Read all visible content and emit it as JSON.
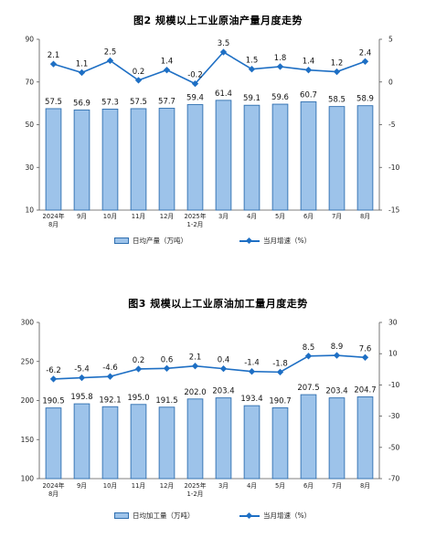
{
  "charts": [
    {
      "id": "chart1",
      "title": "图2  规模以上工业原油产量月度走势",
      "legend": {
        "bar_label": "日均产量（万吨）",
        "line_label": "当月增速（%）"
      },
      "colors": {
        "bar_fill": "#9dc3ea",
        "bar_stroke": "#2f6fb0",
        "line": "#1e6fc4"
      },
      "chart_data": {
        "type": "bar",
        "categories": [
          [
            "2024年",
            "8月"
          ],
          [
            "9月"
          ],
          [
            "10月"
          ],
          [
            "11月"
          ],
          [
            "12月"
          ],
          [
            "2025年",
            "1-2月"
          ],
          [
            "3月"
          ],
          [
            "4月"
          ],
          [
            "5月"
          ],
          [
            "6月"
          ],
          [
            "7月"
          ],
          [
            "8月"
          ]
        ],
        "series": [
          {
            "name": "日均产量（万吨）",
            "type": "bar",
            "axis": "left",
            "values": [
              57.5,
              56.9,
              57.3,
              57.5,
              57.7,
              59.4,
              61.4,
              59.1,
              59.6,
              60.7,
              58.5,
              58.9
            ]
          },
          {
            "name": "当月增速（%）",
            "type": "line",
            "axis": "right",
            "values": [
              2.1,
              1.1,
              2.5,
              0.2,
              1.4,
              -0.2,
              3.5,
              1.5,
              1.8,
              1.4,
              1.2,
              2.4
            ]
          }
        ],
        "ylim_left": [
          10,
          90
        ],
        "yticks_left": [
          10,
          30,
          50,
          70,
          90
        ],
        "ylim_right": [
          -15,
          5
        ],
        "yticks_right": [
          -15,
          -10,
          -5,
          0,
          5
        ],
        "grid": false,
        "legend_position": "bottom"
      }
    },
    {
      "id": "chart2",
      "title": "图3  规模以上工业原油加工量月度走势",
      "legend": {
        "bar_label": "日均加工量（万吨）",
        "line_label": "当月增速（%）"
      },
      "colors": {
        "bar_fill": "#9dc3ea",
        "bar_stroke": "#2f6fb0",
        "line": "#1e6fc4"
      },
      "chart_data": {
        "type": "bar",
        "categories": [
          [
            "2024年",
            "8月"
          ],
          [
            "9月"
          ],
          [
            "10月"
          ],
          [
            "11月"
          ],
          [
            "12月"
          ],
          [
            "2025年",
            "1-2月"
          ],
          [
            "3月"
          ],
          [
            "4月"
          ],
          [
            "5月"
          ],
          [
            "6月"
          ],
          [
            "7月"
          ],
          [
            "8月"
          ]
        ],
        "series": [
          {
            "name": "日均加工量（万吨）",
            "type": "bar",
            "axis": "left",
            "values": [
              190.5,
              195.8,
              192.1,
              195.0,
              191.5,
              202.0,
              203.4,
              193.4,
              190.7,
              207.5,
              203.4,
              204.7
            ]
          },
          {
            "name": "当月增速（%）",
            "type": "line",
            "axis": "right",
            "values": [
              -6.2,
              -5.4,
              -4.6,
              0.2,
              0.6,
              2.1,
              0.4,
              -1.4,
              -1.8,
              8.5,
              8.9,
              7.6
            ]
          }
        ],
        "ylim_left": [
          100,
          300
        ],
        "yticks_left": [
          100,
          150,
          200,
          250,
          300
        ],
        "ylim_right": [
          -70,
          30
        ],
        "yticks_right": [
          -70,
          -50,
          -30,
          -10,
          10,
          30
        ],
        "grid": false,
        "legend_position": "bottom"
      }
    }
  ]
}
